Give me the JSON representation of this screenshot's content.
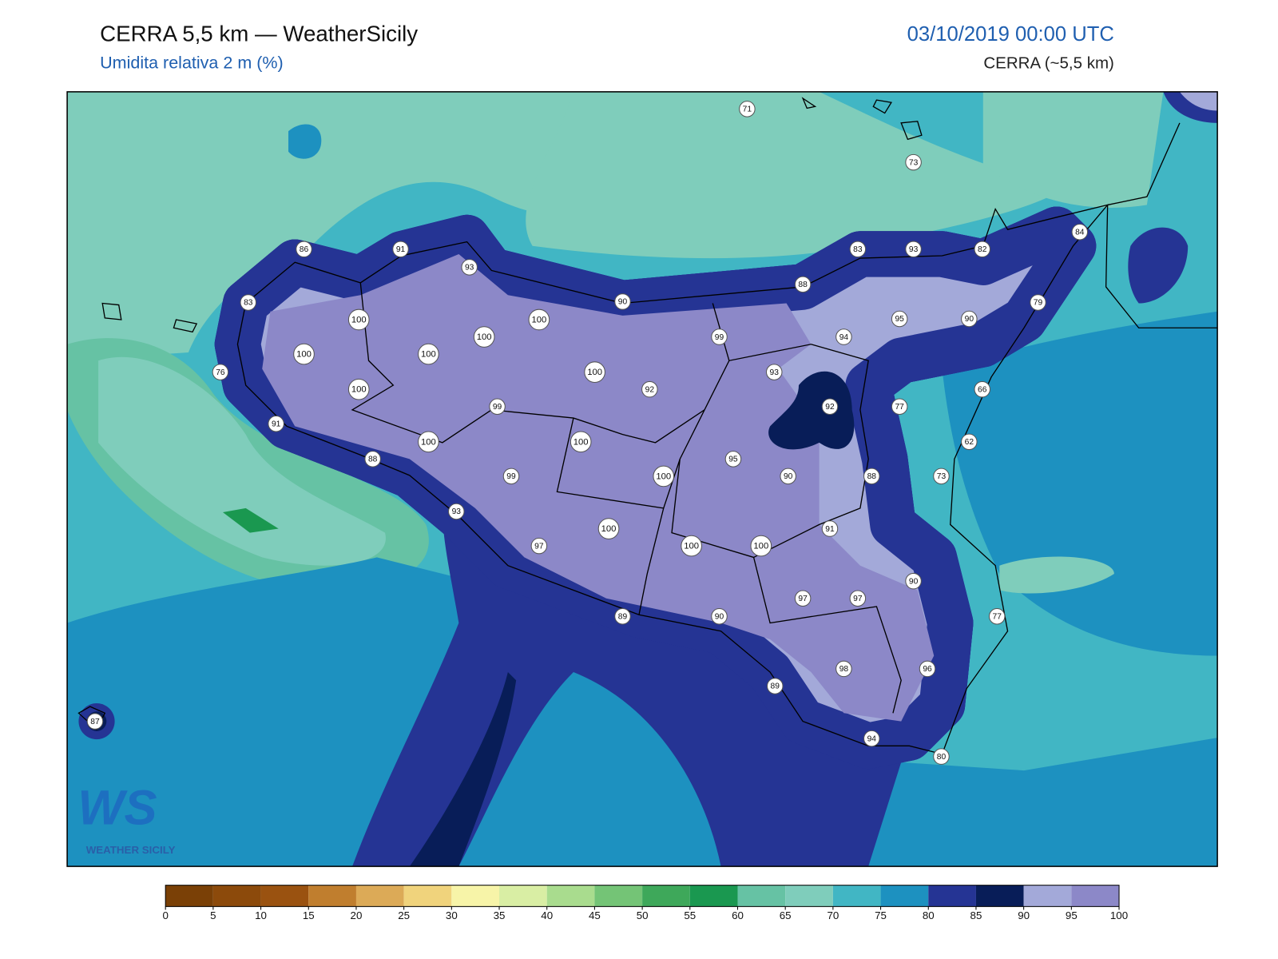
{
  "header": {
    "title": "CERRA 5,5 km — WeatherSicily",
    "subtitle": "Umidita relativa 2 m (%)",
    "datetime": "03/10/2019 00:00 UTC",
    "model": "CERRA (~5,5 km)"
  },
  "stations": [
    71,
    73,
    86,
    91,
    93,
    83,
    93,
    82,
    84,
    83,
    88,
    90,
    100,
    100,
    100,
    100,
    100,
    99,
    95,
    94,
    90,
    79,
    76,
    100,
    93,
    92,
    100,
    99,
    92,
    77,
    66,
    91,
    100,
    100,
    62,
    88,
    99,
    100,
    95,
    90,
    88,
    73,
    93,
    91,
    100,
    97,
    100,
    100,
    90,
    97,
    97,
    77,
    89,
    90,
    98,
    96,
    89,
    87,
    94,
    80
  ],
  "colorbar": {
    "bounds": [
      0,
      5,
      10,
      15,
      20,
      25,
      30,
      35,
      40,
      45,
      50,
      55,
      60,
      65,
      70,
      75,
      80,
      85,
      90,
      95,
      100
    ],
    "colors": [
      "#7a4006",
      "#8c4a0b",
      "#9a5210",
      "#c07e2e",
      "#dcaa57",
      "#f0d37c",
      "#f7f4a8",
      "#d9eea4",
      "#a9dc8e",
      "#74c476",
      "#3ea85a",
      "#1a9850",
      "#66c2a4",
      "#7fcdbb",
      "#41b6c4",
      "#1d91c0",
      "#253494",
      "#081d58",
      "#a3a9d9",
      "#8c88c8"
    ]
  },
  "logo": {
    "initials": "WS",
    "name": "WEATHER SICILY"
  }
}
